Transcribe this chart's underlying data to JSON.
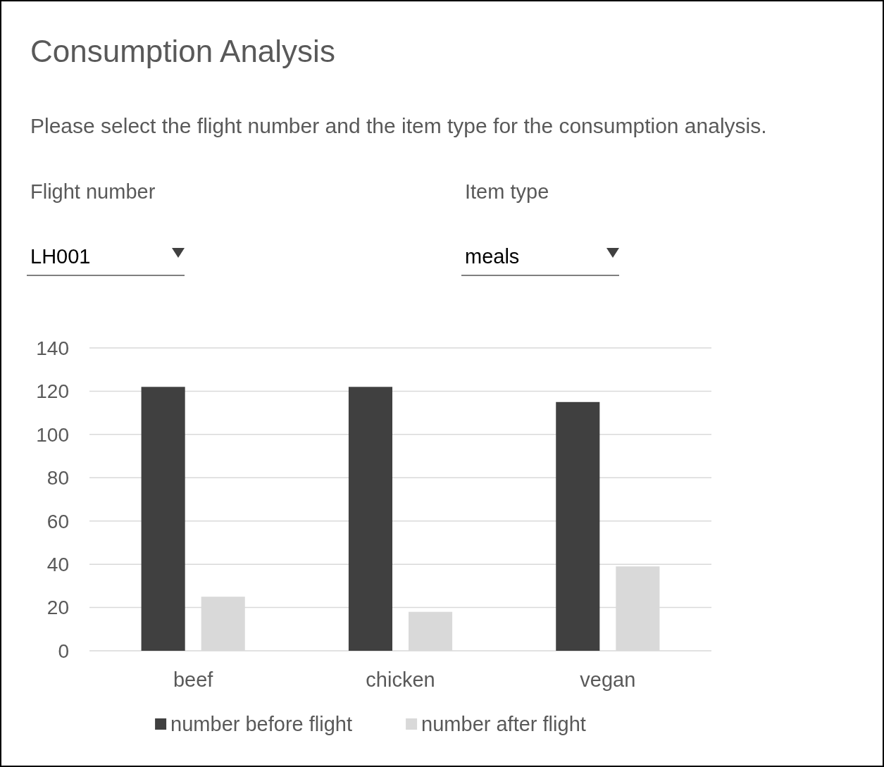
{
  "chart_data": {
    "type": "bar",
    "title": "Consumption Analysis",
    "subtitle": "Please select the flight number and the item type for the consumption analysis.",
    "annotations": [
      "Flight number",
      "LH001",
      "Item type",
      "meals"
    ],
    "categories": [
      "beef",
      "chicken",
      "vegan"
    ],
    "series": [
      {
        "name": "number before flight",
        "color": "#404040",
        "values": [
          122,
          122,
          115
        ]
      },
      {
        "name": "number after flight",
        "color": "#d9d9d9",
        "values": [
          25,
          18,
          39
        ]
      }
    ],
    "ylim": [
      0,
      140
    ],
    "yticks": [
      0,
      20,
      40,
      60,
      80,
      100,
      120,
      140
    ],
    "grid": "y",
    "legend": "bottom"
  }
}
